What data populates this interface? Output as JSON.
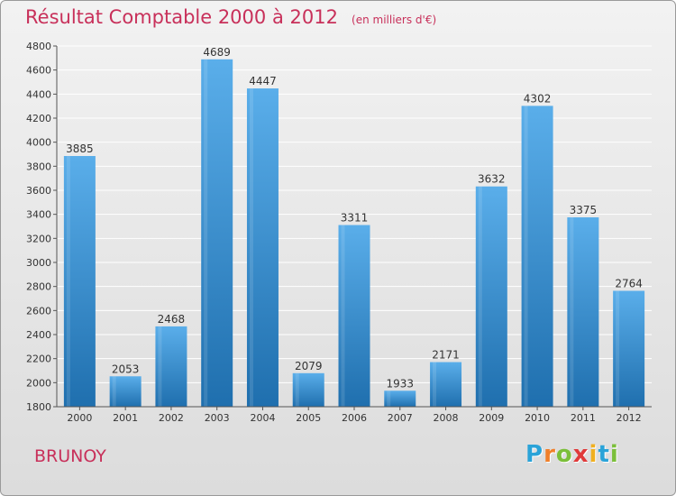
{
  "title": "Résultat Comptable 2000 à 2012",
  "unit_note": "(en milliers d'€)",
  "city": "BRUNOY",
  "logo": {
    "text": "Proxiti",
    "letter_colors": [
      "#2aa3d8",
      "#f0802a",
      "#7bbf3a",
      "#e03a3a",
      "#f0b020",
      "#2aa3d8",
      "#7bbf3a"
    ]
  },
  "colors": {
    "title": "#c8305a",
    "bar_top": "#5aaeea",
    "bar_bottom": "#1f6fae",
    "grid": "#ffffff",
    "axis_text": "#333333"
  },
  "chart_data": {
    "type": "bar",
    "title": "Résultat Comptable 2000 à 2012",
    "xlabel": "",
    "ylabel": "",
    "grid": true,
    "ylim": [
      1800,
      4800
    ],
    "yticks": [
      1800,
      2000,
      2200,
      2400,
      2600,
      2800,
      3000,
      3200,
      3400,
      3600,
      3800,
      4000,
      4200,
      4400,
      4600,
      4800
    ],
    "categories": [
      "2000",
      "2001",
      "2002",
      "2003",
      "2004",
      "2005",
      "2006",
      "2007",
      "2008",
      "2009",
      "2010",
      "2011",
      "2012"
    ],
    "values": [
      3885,
      2053,
      2468,
      4689,
      4447,
      2079,
      3311,
      1933,
      2171,
      3632,
      4302,
      3375,
      2764
    ]
  }
}
